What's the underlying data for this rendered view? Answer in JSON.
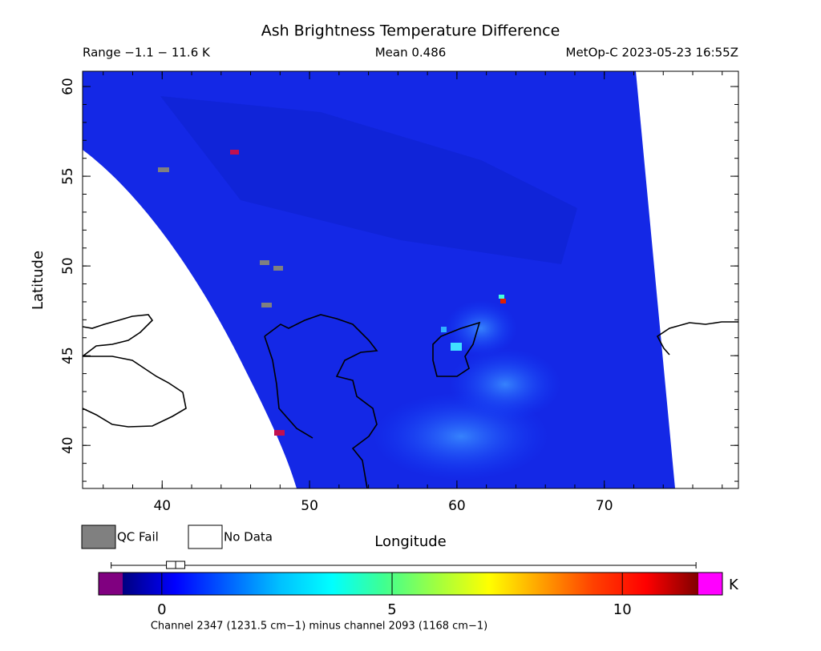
{
  "chart_data": {
    "type": "swath-map",
    "title": "Ash Brightness Temperature Difference",
    "range_text": "Range −1.1 − 11.6 K",
    "mean_text": "Mean 0.486",
    "source_text": "MetOp-C 2023-05-23 16:55Z",
    "x_label": "Longitude",
    "y_label": "Latitude",
    "xlim": [
      34.6,
      79.1
    ],
    "ylim": [
      37.6,
      60.85
    ],
    "xticks": [
      40,
      50,
      60,
      70
    ],
    "yticks": [
      40,
      45,
      50,
      55,
      60
    ],
    "x_minor_step": 2,
    "y_minor_step": 1,
    "legend": [
      {
        "name": "QC Fail",
        "color": "#808080"
      },
      {
        "name": "No Data",
        "color": "#ffffff"
      }
    ],
    "colorbar": {
      "lim": [
        -0.85,
        11.65
      ],
      "ticks": [
        0,
        5,
        10
      ],
      "unit": "K",
      "colormap": [
        "#000080",
        "#0000ff",
        "#0060ff",
        "#00c0ff",
        "#00ffff",
        "#40ff90",
        "#a0ff40",
        "#ffff00",
        "#ffa000",
        "#ff4000",
        "#ff0000",
        "#800000"
      ],
      "under_color": "#800080",
      "over_color": "#ff00ff",
      "box": {
        "min": -1.1,
        "q1": 0.1,
        "median": 0.3,
        "q3": 0.5,
        "max": 11.6
      }
    },
    "footnote": "Channel 2347 (1231.5 cm−1) minus channel 2093 (1168 cm−1)"
  }
}
